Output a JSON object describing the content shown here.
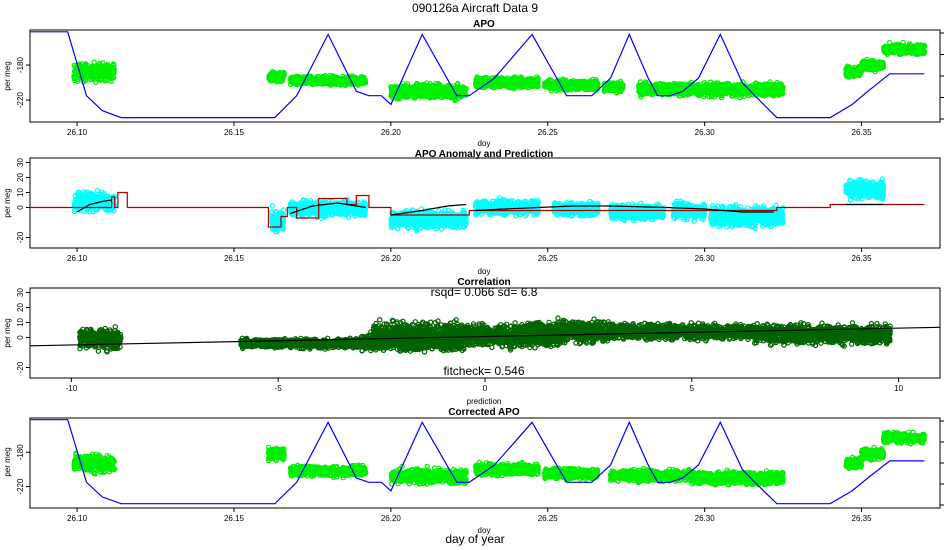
{
  "main_title": "090126a   Aircraft Data 9",
  "bottom_label": "day of year",
  "colors": {
    "points": "#00ee00",
    "points_cyan": "#00ffff",
    "points_dark": "#006400",
    "model_blue": "#0000ff",
    "anomaly_red": "#aa0000",
    "fit_black": "#000000"
  },
  "chart_data": [
    {
      "type": "scatter",
      "title": "APO",
      "xlabel": "doy",
      "ylabel": "per meg",
      "xlim": [
        26.085,
        26.375
      ],
      "ylim": [
        -245,
        -140
      ],
      "xticks": [
        26.1,
        26.15,
        26.2,
        26.25,
        26.3,
        26.35
      ],
      "xtick_labels": [
        "26.10",
        "26.15",
        "26.20",
        "26.25",
        "26.30",
        "26.35"
      ],
      "yticks": [
        -220,
        -180
      ],
      "ytick_labels": [
        "-220",
        "-180"
      ],
      "point_clusters": [
        {
          "x": [
            26.099,
            26.112
          ],
          "y_center": -188,
          "y_spread": 14
        },
        {
          "x": [
            26.161,
            26.166
          ],
          "y_center": -193,
          "y_spread": 7
        },
        {
          "x": [
            26.168,
            26.192
          ],
          "y_center": -198,
          "y_spread": 7
        },
        {
          "x": [
            26.2,
            26.224
          ],
          "y_center": -210,
          "y_spread": 12
        },
        {
          "x": [
            26.227,
            26.247
          ],
          "y_center": -200,
          "y_spread": 8
        },
        {
          "x": [
            26.249,
            26.266
          ],
          "y_center": -203,
          "y_spread": 8
        },
        {
          "x": [
            26.268,
            26.274
          ],
          "y_center": -205,
          "y_spread": 8
        },
        {
          "x": [
            26.279,
            26.325
          ],
          "y_center": -208,
          "y_spread": 10
        },
        {
          "x": [
            26.345,
            26.35
          ],
          "y_center": -188,
          "y_spread": 8
        },
        {
          "x": [
            26.35,
            26.357
          ],
          "y_center": -180,
          "y_spread": 9
        },
        {
          "x": [
            26.357,
            26.37
          ],
          "y_center": -162,
          "y_spread": 8
        }
      ],
      "series": [
        {
          "style": "line",
          "x": [
            26.085,
            26.097,
            26.103,
            26.108,
            26.114,
            26.163,
            26.17,
            26.18,
            26.189,
            26.193,
            26.197,
            26.2,
            26.21,
            26.221,
            26.225,
            26.233,
            26.245,
            26.256,
            26.259,
            26.264,
            26.27,
            26.276,
            26.282,
            26.285,
            26.289,
            26.293,
            26.298,
            26.305,
            26.312,
            26.316,
            26.323,
            26.34,
            26.347,
            26.352,
            26.359,
            26.37
          ],
          "y": [
            -142,
            -142,
            -215,
            -232,
            -240,
            -240,
            -215,
            -145,
            -210,
            -215,
            -215,
            -225,
            -145,
            -215,
            -215,
            -195,
            -145,
            -215,
            -215,
            -215,
            -195,
            -145,
            -195,
            -215,
            -215,
            -210,
            -195,
            -145,
            -200,
            -215,
            -240,
            -240,
            -225,
            -210,
            -190,
            -190
          ]
        }
      ]
    },
    {
      "type": "scatter",
      "title": "APO Anomaly and Prediction",
      "xlabel": "doy",
      "ylabel": "per meg",
      "xlim": [
        26.085,
        26.375
      ],
      "ylim": [
        -27,
        33
      ],
      "xticks": [
        26.1,
        26.15,
        26.2,
        26.25,
        26.3,
        26.35
      ],
      "xtick_labels": [
        "26.10",
        "26.15",
        "26.20",
        "26.25",
        "26.30",
        "26.35"
      ],
      "yticks": [
        -20,
        0,
        10,
        20,
        30
      ],
      "ytick_labels": [
        "-20",
        "0",
        "10",
        "20",
        "30"
      ],
      "point_clusters": [
        {
          "x": [
            26.099,
            26.112
          ],
          "y_center": 4,
          "y_spread": 9
        },
        {
          "x": [
            26.162,
            26.166
          ],
          "y_center": -8,
          "y_spread": 10
        },
        {
          "x": [
            26.168,
            26.192
          ],
          "y_center": -1,
          "y_spread": 7
        },
        {
          "x": [
            26.2,
            26.224
          ],
          "y_center": -8,
          "y_spread": 8
        },
        {
          "x": [
            26.227,
            26.247
          ],
          "y_center": 0,
          "y_spread": 7
        },
        {
          "x": [
            26.252,
            26.266
          ],
          "y_center": -1,
          "y_spread": 6
        },
        {
          "x": [
            26.27,
            26.287
          ],
          "y_center": -3,
          "y_spread": 7
        },
        {
          "x": [
            26.29,
            26.3
          ],
          "y_center": -2,
          "y_spread": 8
        },
        {
          "x": [
            26.302,
            26.325
          ],
          "y_center": -6,
          "y_spread": 9
        },
        {
          "x": [
            26.345,
            26.357
          ],
          "y_center": 12,
          "y_spread": 9
        }
      ],
      "series": [
        {
          "style": "step",
          "color": "anomaly_red",
          "x": [
            26.085,
            26.111,
            26.111,
            26.112,
            26.112,
            26.113,
            26.113,
            26.116,
            26.116,
            26.161,
            26.161,
            26.165,
            26.165,
            26.167,
            26.167,
            26.17,
            26.17,
            26.177,
            26.177,
            26.186,
            26.186,
            26.189,
            26.189,
            26.193,
            26.193,
            26.2,
            26.2,
            26.225,
            26.225,
            26.323,
            26.323,
            26.34,
            26.34,
            26.37
          ],
          "y": [
            0,
            0,
            7,
            7,
            0,
            0,
            10,
            10,
            0,
            0,
            -13,
            -13,
            -6,
            -6,
            0,
            0,
            -7,
            -7,
            6,
            6,
            2,
            2,
            8,
            8,
            0,
            0,
            -5,
            -5,
            -2,
            -2,
            0,
            0,
            2,
            2
          ]
        },
        {
          "style": "line",
          "color": "fit_black",
          "x": [
            26.1,
            26.104,
            26.108,
            26.111
          ],
          "y": [
            -3,
            2,
            4,
            5
          ]
        },
        {
          "style": "line",
          "color": "fit_black",
          "x": [
            26.168,
            26.175,
            26.183,
            26.192
          ],
          "y": [
            -4,
            1,
            3,
            0
          ]
        },
        {
          "style": "line",
          "color": "fit_black",
          "x": [
            26.2,
            26.21,
            26.218,
            26.224
          ],
          "y": [
            -5,
            -2,
            1,
            2
          ]
        },
        {
          "style": "line",
          "color": "fit_black",
          "x": [
            26.227,
            26.236,
            26.247,
            26.258,
            26.27,
            26.288,
            26.3,
            26.312,
            26.322
          ],
          "y": [
            -2,
            -1,
            0,
            1,
            1,
            0,
            -1,
            -3,
            -3
          ]
        },
        {
          "style": "line",
          "color": "fit_black",
          "x": [
            26.345,
            26.351,
            26.357
          ],
          "y": [
            2,
            2,
            2
          ]
        }
      ]
    },
    {
      "type": "scatter",
      "title": "Correlation",
      "xlabel": "prediction",
      "ylabel": "per meg",
      "xlim": [
        -11,
        11
      ],
      "ylim": [
        -27,
        33
      ],
      "xticks": [
        -10,
        -5,
        0,
        5,
        10
      ],
      "xtick_labels": [
        "-10",
        "-5",
        "0",
        "5",
        "10"
      ],
      "yticks": [
        -20,
        0,
        10,
        20,
        30
      ],
      "ytick_labels": [
        "-20",
        "0",
        "10",
        "20",
        "30"
      ],
      "annotations": [
        "rsqd= 0.066 sd= 6.8",
        "fitcheck= 0.546"
      ],
      "point_clusters": [
        {
          "x": [
            -9.8,
            -8.8
          ],
          "y_center": -1,
          "y_spread": 10
        },
        {
          "x": [
            -5.9,
            -3.0
          ],
          "y_center": -4,
          "y_spread": 4
        },
        {
          "x": [
            -3.0,
            -0.5
          ],
          "y_center": -3,
          "y_spread": 8
        },
        {
          "x": [
            -2.7,
            0.0
          ],
          "y_center": 2,
          "y_spread": 11
        },
        {
          "x": [
            0.0,
            1.8
          ],
          "y_center": 1,
          "y_spread": 10
        },
        {
          "x": [
            1.0,
            3.0
          ],
          "y_center": 4,
          "y_spread": 10
        },
        {
          "x": [
            3.0,
            6.5
          ],
          "y_center": 4,
          "y_spread": 7
        },
        {
          "x": [
            6.5,
            9.8
          ],
          "y_center": 2,
          "y_spread": 9
        }
      ],
      "series": [
        {
          "style": "line",
          "color": "fit_black",
          "x": [
            -11,
            11
          ],
          "y": [
            -5.5,
            6.8
          ]
        }
      ]
    },
    {
      "type": "scatter",
      "title": "Corrected APO",
      "xlabel": "doy",
      "ylabel": "per meg",
      "xlim": [
        26.085,
        26.375
      ],
      "ylim": [
        -245,
        -140
      ],
      "xticks": [
        26.1,
        26.15,
        26.2,
        26.25,
        26.3,
        26.35
      ],
      "xtick_labels": [
        "26.10",
        "26.15",
        "26.20",
        "26.25",
        "26.30",
        "26.35"
      ],
      "yticks": [
        -220,
        -180
      ],
      "ytick_labels": [
        "-220",
        "-180"
      ],
      "point_clusters": [
        {
          "x": [
            26.099,
            26.112
          ],
          "y_center": -193,
          "y_spread": 14
        },
        {
          "x": [
            26.161,
            26.166
          ],
          "y_center": -182,
          "y_spread": 9
        },
        {
          "x": [
            26.168,
            26.192
          ],
          "y_center": -202,
          "y_spread": 8
        },
        {
          "x": [
            26.2,
            26.224
          ],
          "y_center": -208,
          "y_spread": 12
        },
        {
          "x": [
            26.227,
            26.247
          ],
          "y_center": -200,
          "y_spread": 9
        },
        {
          "x": [
            26.249,
            26.266
          ],
          "y_center": -205,
          "y_spread": 8
        },
        {
          "x": [
            26.27,
            26.296
          ],
          "y_center": -207,
          "y_spread": 9
        },
        {
          "x": [
            26.296,
            26.325
          ],
          "y_center": -210,
          "y_spread": 10
        },
        {
          "x": [
            26.345,
            26.35
          ],
          "y_center": -193,
          "y_spread": 9
        },
        {
          "x": [
            26.35,
            26.357
          ],
          "y_center": -182,
          "y_spread": 9
        },
        {
          "x": [
            26.357,
            26.37
          ],
          "y_center": -163,
          "y_spread": 8
        }
      ],
      "series": [
        {
          "style": "line",
          "x": [
            26.085,
            26.097,
            26.103,
            26.108,
            26.114,
            26.163,
            26.17,
            26.18,
            26.189,
            26.193,
            26.197,
            26.2,
            26.21,
            26.221,
            26.225,
            26.233,
            26.245,
            26.256,
            26.259,
            26.264,
            26.27,
            26.276,
            26.282,
            26.285,
            26.289,
            26.293,
            26.298,
            26.305,
            26.312,
            26.316,
            26.323,
            26.34,
            26.347,
            26.352,
            26.359,
            26.37
          ],
          "y": [
            -142,
            -142,
            -215,
            -232,
            -240,
            -240,
            -215,
            -145,
            -210,
            -215,
            -215,
            -225,
            -145,
            -215,
            -215,
            -195,
            -145,
            -215,
            -215,
            -215,
            -195,
            -145,
            -195,
            -215,
            -215,
            -210,
            -195,
            -145,
            -200,
            -215,
            -240,
            -240,
            -225,
            -210,
            -190,
            -190
          ]
        }
      ]
    }
  ]
}
